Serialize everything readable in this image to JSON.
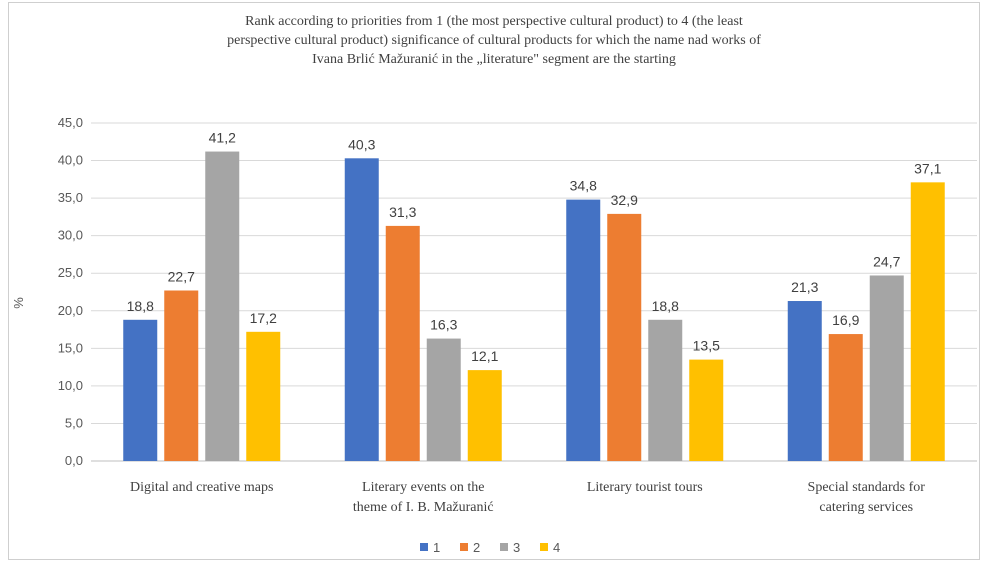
{
  "chart_data": {
    "type": "bar",
    "title_lines": [
      "Rank according to priorities  from 1 (the most perspective cultural product) to 4 (the least",
      "perspective cultural product) significance  of cultural products for which the name nad works of",
      "Ivana Brlić  Mažuranić  in the „literature\"  segment are the starting"
    ],
    "ylabel": "%",
    "xlabel": "",
    "ylim": [
      0,
      45
    ],
    "yticks": [
      "0,0",
      "5,0",
      "10,0",
      "15,0",
      "20,0",
      "25,0",
      "30,0",
      "35,0",
      "40,0",
      "45,0"
    ],
    "ytick_values": [
      0,
      5,
      10,
      15,
      20,
      25,
      30,
      35,
      40,
      45
    ],
    "categories": [
      [
        "Digital and creative maps"
      ],
      [
        "Literary events on the",
        "theme of I. B. Mažuranić"
      ],
      [
        "Literary tourist tours"
      ],
      [
        "Special standards for",
        "catering services"
      ]
    ],
    "series": [
      {
        "name": "1",
        "color": "#4472C4",
        "values": [
          18.8,
          40.3,
          34.8,
          21.3
        ],
        "labels": [
          "18,8",
          "40,3",
          "34,8",
          "21,3"
        ]
      },
      {
        "name": "2",
        "color": "#ED7D31",
        "values": [
          22.7,
          31.3,
          32.9,
          16.9
        ],
        "labels": [
          "22,7",
          "31,3",
          "32,9",
          "16,9"
        ]
      },
      {
        "name": "3",
        "color": "#A5A5A5",
        "values": [
          41.2,
          16.3,
          18.8,
          24.7
        ],
        "labels": [
          "41,2",
          "16,3",
          "18,8",
          "24,7"
        ]
      },
      {
        "name": "4",
        "color": "#FFC000",
        "values": [
          17.2,
          12.1,
          13.5,
          37.1
        ],
        "labels": [
          "17,2",
          "12,1",
          "13,5",
          "37,1"
        ]
      }
    ],
    "grid": true,
    "legend_position": "bottom"
  }
}
